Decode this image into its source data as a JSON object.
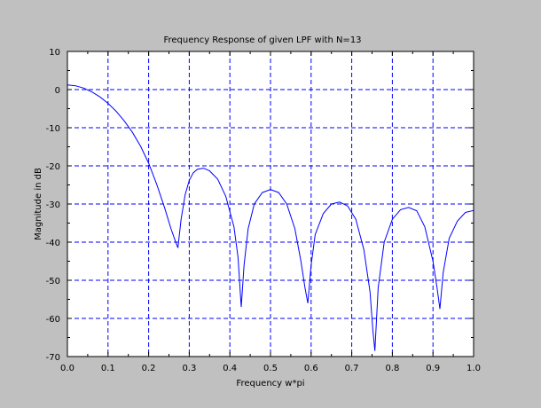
{
  "chart_data": {
    "type": "line",
    "title": "Frequency Response of given LPF with N=13",
    "xlabel": "Frequency w*pi",
    "ylabel": "Magnitude in dB",
    "xlim": [
      0,
      1
    ],
    "ylim": [
      -70,
      10
    ],
    "xticks": [
      "0.0",
      "0.1",
      "0.2",
      "0.3",
      "0.4",
      "0.5",
      "0.6",
      "0.7",
      "0.8",
      "0.9",
      "1.0"
    ],
    "yticks": [
      "10",
      "0",
      "-10",
      "-20",
      "-30",
      "-40",
      "-50",
      "-60",
      "-70"
    ],
    "grid": true,
    "series": [
      {
        "color": "#0000ff",
        "x": [
          0.0,
          0.02,
          0.04,
          0.06,
          0.08,
          0.1,
          0.12,
          0.14,
          0.16,
          0.18,
          0.2,
          0.22,
          0.24,
          0.255,
          0.265,
          0.272,
          0.28,
          0.29,
          0.3,
          0.31,
          0.32,
          0.335,
          0.35,
          0.37,
          0.39,
          0.41,
          0.42,
          0.428,
          0.435,
          0.445,
          0.46,
          0.48,
          0.5,
          0.52,
          0.54,
          0.56,
          0.575,
          0.585,
          0.592,
          0.6,
          0.61,
          0.63,
          0.65,
          0.67,
          0.69,
          0.71,
          0.73,
          0.745,
          0.752,
          0.757,
          0.765,
          0.78,
          0.8,
          0.82,
          0.84,
          0.86,
          0.88,
          0.9,
          0.91,
          0.917,
          0.925,
          0.94,
          0.96,
          0.98,
          1.0
        ],
        "y": [
          1.2,
          1.0,
          0.4,
          -0.6,
          -1.9,
          -3.6,
          -5.7,
          -8.2,
          -11.2,
          -14.8,
          -19.3,
          -24.9,
          -31.2,
          -36.5,
          -39.5,
          -41.5,
          -34.0,
          -27.5,
          -23.8,
          -21.8,
          -20.9,
          -20.6,
          -21.3,
          -23.5,
          -28.0,
          -36.0,
          -44.0,
          -57.0,
          -46.0,
          -36.5,
          -30.0,
          -27.0,
          -26.2,
          -27.0,
          -30.0,
          -36.5,
          -45.0,
          -52.0,
          -56.0,
          -46.0,
          -38.0,
          -32.5,
          -30.0,
          -29.5,
          -30.5,
          -34.0,
          -42.0,
          -53.0,
          -63.0,
          -68.5,
          -52.0,
          -40.0,
          -34.0,
          -31.5,
          -30.9,
          -31.8,
          -36.0,
          -45.0,
          -52.0,
          -57.5,
          -48.0,
          -39.0,
          -34.5,
          -32.2,
          -31.7
        ]
      }
    ]
  }
}
